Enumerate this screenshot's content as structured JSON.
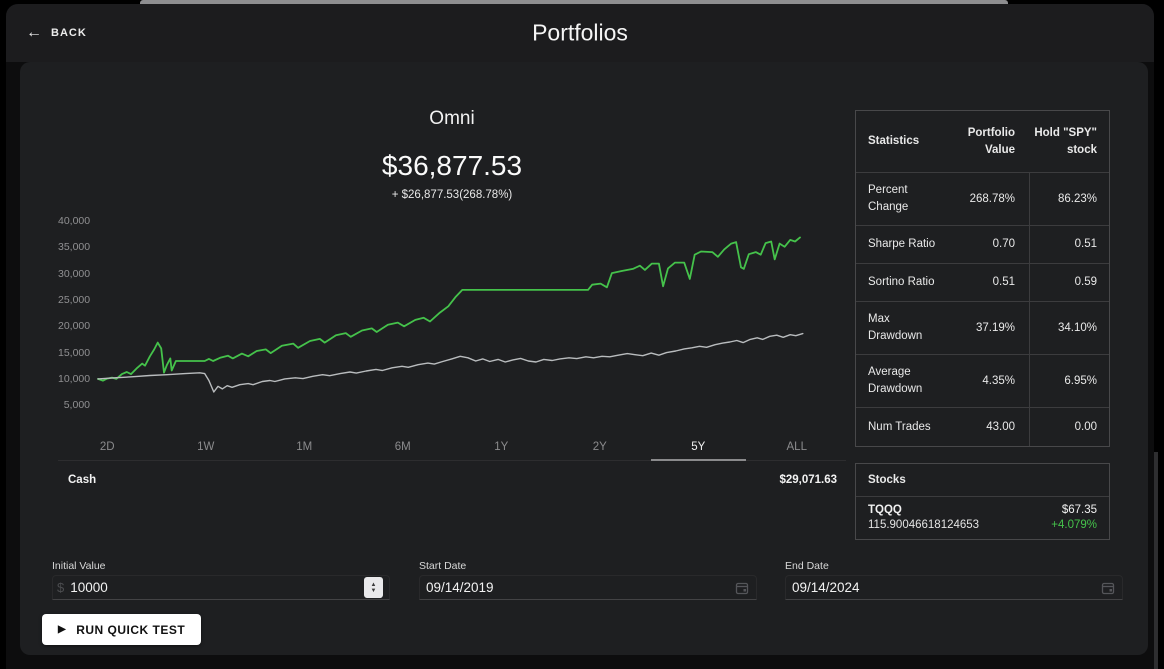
{
  "header": {
    "back_label": "BACK",
    "title": "Portfolios"
  },
  "portfolio": {
    "name": "Omni",
    "value": "$36,877.53",
    "change": "+ $26,877.53(268.78%)"
  },
  "chart": {
    "y_ticks": [
      "40,000",
      "35,000",
      "30,000",
      "25,000",
      "20,000",
      "15,000",
      "10,000",
      "5,000"
    ],
    "range_tabs": [
      {
        "label": "2D"
      },
      {
        "label": "1W"
      },
      {
        "label": "1M"
      },
      {
        "label": "6M"
      },
      {
        "label": "1Y"
      },
      {
        "label": "2Y"
      },
      {
        "label": "5Y",
        "active": true
      },
      {
        "label": "ALL"
      }
    ]
  },
  "chart_data": {
    "type": "line",
    "title": "Omni portfolio value vs holding SPY, 5Y backtest",
    "ylim": [
      5000,
      40000
    ],
    "y_tick_step": 5000,
    "grid": false,
    "legend": "none",
    "series": [
      {
        "name": "Portfolio Value",
        "color": "#45c24b",
        "points": [
          [
            0,
            10000
          ],
          [
            0.007,
            9650
          ],
          [
            0.013,
            10050
          ],
          [
            0.02,
            10250
          ],
          [
            0.026,
            10000
          ],
          [
            0.034,
            10900
          ],
          [
            0.041,
            11300
          ],
          [
            0.047,
            10900
          ],
          [
            0.056,
            12100
          ],
          [
            0.063,
            12900
          ],
          [
            0.067,
            12500
          ],
          [
            0.074,
            14300
          ],
          [
            0.08,
            15600
          ],
          [
            0.085,
            16900
          ],
          [
            0.09,
            15800
          ],
          [
            0.094,
            11200
          ],
          [
            0.098,
            12600
          ],
          [
            0.103,
            13900
          ],
          [
            0.105,
            11600
          ],
          [
            0.111,
            13400
          ],
          [
            0.152,
            13400
          ],
          [
            0.158,
            13800
          ],
          [
            0.164,
            13400
          ],
          [
            0.174,
            14000
          ],
          [
            0.185,
            14400
          ],
          [
            0.192,
            13900
          ],
          [
            0.205,
            14800
          ],
          [
            0.214,
            14300
          ],
          [
            0.226,
            15300
          ],
          [
            0.239,
            15600
          ],
          [
            0.246,
            14900
          ],
          [
            0.262,
            16300
          ],
          [
            0.278,
            16700
          ],
          [
            0.285,
            15900
          ],
          [
            0.302,
            17200
          ],
          [
            0.316,
            17600
          ],
          [
            0.323,
            16900
          ],
          [
            0.339,
            18300
          ],
          [
            0.353,
            18700
          ],
          [
            0.36,
            18000
          ],
          [
            0.376,
            19200
          ],
          [
            0.39,
            19600
          ],
          [
            0.397,
            18900
          ],
          [
            0.413,
            20300
          ],
          [
            0.427,
            20700
          ],
          [
            0.436,
            20000
          ],
          [
            0.452,
            21200
          ],
          [
            0.464,
            21600
          ],
          [
            0.473,
            20900
          ],
          [
            0.487,
            22600
          ],
          [
            0.499,
            23800
          ],
          [
            0.509,
            25500
          ],
          [
            0.519,
            26900
          ],
          [
            0.698,
            26900
          ],
          [
            0.704,
            27900
          ],
          [
            0.716,
            28100
          ],
          [
            0.725,
            27400
          ],
          [
            0.732,
            30100
          ],
          [
            0.746,
            30500
          ],
          [
            0.762,
            30900
          ],
          [
            0.772,
            31500
          ],
          [
            0.779,
            30700
          ],
          [
            0.789,
            31900
          ],
          [
            0.799,
            31900
          ],
          [
            0.805,
            27600
          ],
          [
            0.812,
            31000
          ],
          [
            0.822,
            32100
          ],
          [
            0.835,
            32100
          ],
          [
            0.843,
            29000
          ],
          [
            0.85,
            33600
          ],
          [
            0.859,
            34200
          ],
          [
            0.875,
            34100
          ],
          [
            0.883,
            33200
          ],
          [
            0.892,
            34600
          ],
          [
            0.902,
            35700
          ],
          [
            0.909,
            36000
          ],
          [
            0.916,
            31200
          ],
          [
            0.92,
            30900
          ],
          [
            0.927,
            33700
          ],
          [
            0.937,
            34100
          ],
          [
            0.944,
            33600
          ],
          [
            0.951,
            35800
          ],
          [
            0.959,
            36100
          ],
          [
            0.964,
            32700
          ],
          [
            0.971,
            35700
          ],
          [
            0.978,
            35100
          ],
          [
            0.986,
            36400
          ],
          [
            0.993,
            36100
          ],
          [
            1,
            36877
          ]
        ]
      },
      {
        "name": "Hold SPY stock",
        "color": "#b9bcbe",
        "points": [
          [
            0,
            10000
          ],
          [
            0.024,
            10200
          ],
          [
            0.048,
            10400
          ],
          [
            0.074,
            10650
          ],
          [
            0.098,
            10800
          ],
          [
            0.124,
            11000
          ],
          [
            0.145,
            11150
          ],
          [
            0.152,
            11000
          ],
          [
            0.158,
            9700
          ],
          [
            0.165,
            7500
          ],
          [
            0.171,
            8600
          ],
          [
            0.177,
            8100
          ],
          [
            0.184,
            8700
          ],
          [
            0.191,
            8400
          ],
          [
            0.202,
            8900
          ],
          [
            0.214,
            9100
          ],
          [
            0.221,
            8900
          ],
          [
            0.234,
            9500
          ],
          [
            0.245,
            9700
          ],
          [
            0.252,
            9500
          ],
          [
            0.266,
            10000
          ],
          [
            0.281,
            10200
          ],
          [
            0.292,
            10050
          ],
          [
            0.306,
            10500
          ],
          [
            0.32,
            10800
          ],
          [
            0.33,
            10600
          ],
          [
            0.345,
            11000
          ],
          [
            0.359,
            11300
          ],
          [
            0.368,
            11100
          ],
          [
            0.382,
            11500
          ],
          [
            0.396,
            11800
          ],
          [
            0.405,
            11600
          ],
          [
            0.419,
            12100
          ],
          [
            0.433,
            12400
          ],
          [
            0.442,
            12200
          ],
          [
            0.456,
            12700
          ],
          [
            0.47,
            13000
          ],
          [
            0.479,
            12800
          ],
          [
            0.491,
            13300
          ],
          [
            0.504,
            13800
          ],
          [
            0.516,
            14300
          ],
          [
            0.527,
            14000
          ],
          [
            0.538,
            13400
          ],
          [
            0.548,
            13800
          ],
          [
            0.558,
            13300
          ],
          [
            0.57,
            13700
          ],
          [
            0.58,
            13200
          ],
          [
            0.591,
            13600
          ],
          [
            0.602,
            13900
          ],
          [
            0.613,
            13400
          ],
          [
            0.624,
            13200
          ],
          [
            0.635,
            13700
          ],
          [
            0.647,
            13500
          ],
          [
            0.658,
            13800
          ],
          [
            0.671,
            14000
          ],
          [
            0.682,
            13850
          ],
          [
            0.695,
            14200
          ],
          [
            0.706,
            14000
          ],
          [
            0.718,
            14300
          ],
          [
            0.729,
            14200
          ],
          [
            0.741,
            14500
          ],
          [
            0.754,
            14800
          ],
          [
            0.765,
            14600
          ],
          [
            0.776,
            14400
          ],
          [
            0.788,
            14900
          ],
          [
            0.799,
            14500
          ],
          [
            0.81,
            15000
          ],
          [
            0.823,
            15300
          ],
          [
            0.835,
            15700
          ],
          [
            0.846,
            15900
          ],
          [
            0.857,
            16200
          ],
          [
            0.867,
            16000
          ],
          [
            0.879,
            16500
          ],
          [
            0.89,
            16800
          ],
          [
            0.9,
            17000
          ],
          [
            0.91,
            17300
          ],
          [
            0.919,
            16900
          ],
          [
            0.929,
            17500
          ],
          [
            0.939,
            17800
          ],
          [
            0.947,
            17500
          ],
          [
            0.957,
            18100
          ],
          [
            0.967,
            18300
          ],
          [
            0.976,
            17900
          ],
          [
            0.986,
            18400
          ],
          [
            0.994,
            18200
          ],
          [
            1.004,
            18600
          ]
        ]
      }
    ]
  },
  "cash": {
    "label": "Cash",
    "value": "$29,071.63"
  },
  "stats": {
    "headers": {
      "col1": "Statistics",
      "col2": "Portfolio Value",
      "col3": "Hold \"SPY\" stock"
    },
    "rows": [
      {
        "label": "Percent Change",
        "portfolio": "268.78%",
        "spy": "86.23%"
      },
      {
        "label": "Sharpe Ratio",
        "portfolio": "0.70",
        "spy": "0.51"
      },
      {
        "label": "Sortino Ratio",
        "portfolio": "0.51",
        "spy": "0.59"
      },
      {
        "label": "Max Drawdown",
        "portfolio": "37.19%",
        "spy": "34.10%"
      },
      {
        "label": "Average Drawdown",
        "portfolio": "4.35%",
        "spy": "6.95%"
      },
      {
        "label": "Num Trades",
        "portfolio": "43.00",
        "spy": "0.00"
      }
    ]
  },
  "stocks": {
    "title": "Stocks",
    "rows": [
      {
        "symbol": "TQQQ",
        "shares": "115.90046618124653",
        "price": "$67.35",
        "change": "+4.079%"
      }
    ]
  },
  "inputs": {
    "initial_value": {
      "label": "Initial Value",
      "prefix": "$",
      "value": "10000"
    },
    "start_date": {
      "label": "Start Date",
      "value": "09/14/2019"
    },
    "end_date": {
      "label": "End Date",
      "value": "09/14/2024"
    }
  },
  "actions": {
    "run_label": "RUN QUICK TEST"
  },
  "colors": {
    "accent_green": "#45c24b",
    "benchmark_gray": "#b9bcbe",
    "card_bg": "#1e1f21"
  }
}
